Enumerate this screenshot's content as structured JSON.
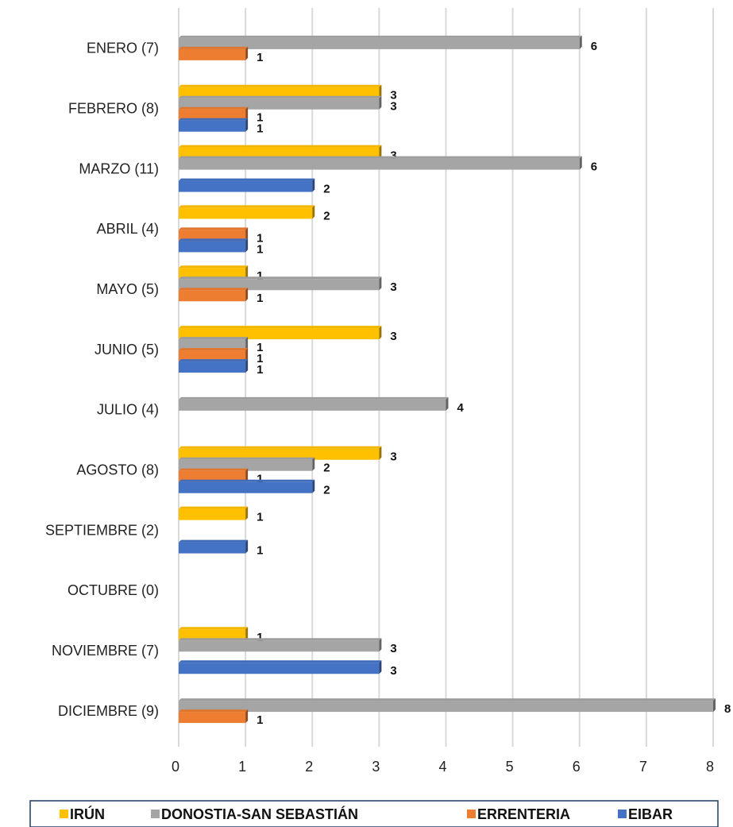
{
  "chart_data": {
    "type": "bar",
    "orientation": "horizontal",
    "categories": [
      "ENERO (7)",
      "FEBRERO (8)",
      "MARZO (11)",
      "ABRIL (4)",
      "MAYO (5)",
      "JUNIO (5)",
      "JULIO (4)",
      "AGOSTO (8)",
      "SEPTIEMBRE (2)",
      "OCTUBRE (0)",
      "NOVIEMBRE (7)",
      "DICIEMBRE (9)"
    ],
    "series": [
      {
        "name": "IRÚN",
        "color": "#ffc000",
        "values": [
          null,
          3,
          3,
          2,
          1,
          3,
          null,
          3,
          1,
          null,
          1,
          null
        ]
      },
      {
        "name": "DONOSTIA-SAN SEBASTIÁN",
        "color": "#a5a5a5",
        "values": [
          6,
          3,
          6,
          null,
          3,
          1,
          4,
          2,
          null,
          null,
          3,
          8
        ]
      },
      {
        "name": "ERRENTERIA",
        "color": "#ed7d31",
        "values": [
          1,
          1,
          null,
          1,
          1,
          1,
          null,
          1,
          null,
          null,
          null,
          1
        ]
      },
      {
        "name": "EIBAR",
        "color": "#4472c4",
        "values": [
          null,
          1,
          2,
          1,
          null,
          1,
          null,
          2,
          1,
          null,
          3,
          null
        ]
      }
    ],
    "xlim": [
      0,
      8
    ],
    "xticks": [
      0,
      1,
      2,
      3,
      4,
      5,
      6,
      7,
      8
    ],
    "grid": true,
    "legend": "bottom"
  }
}
